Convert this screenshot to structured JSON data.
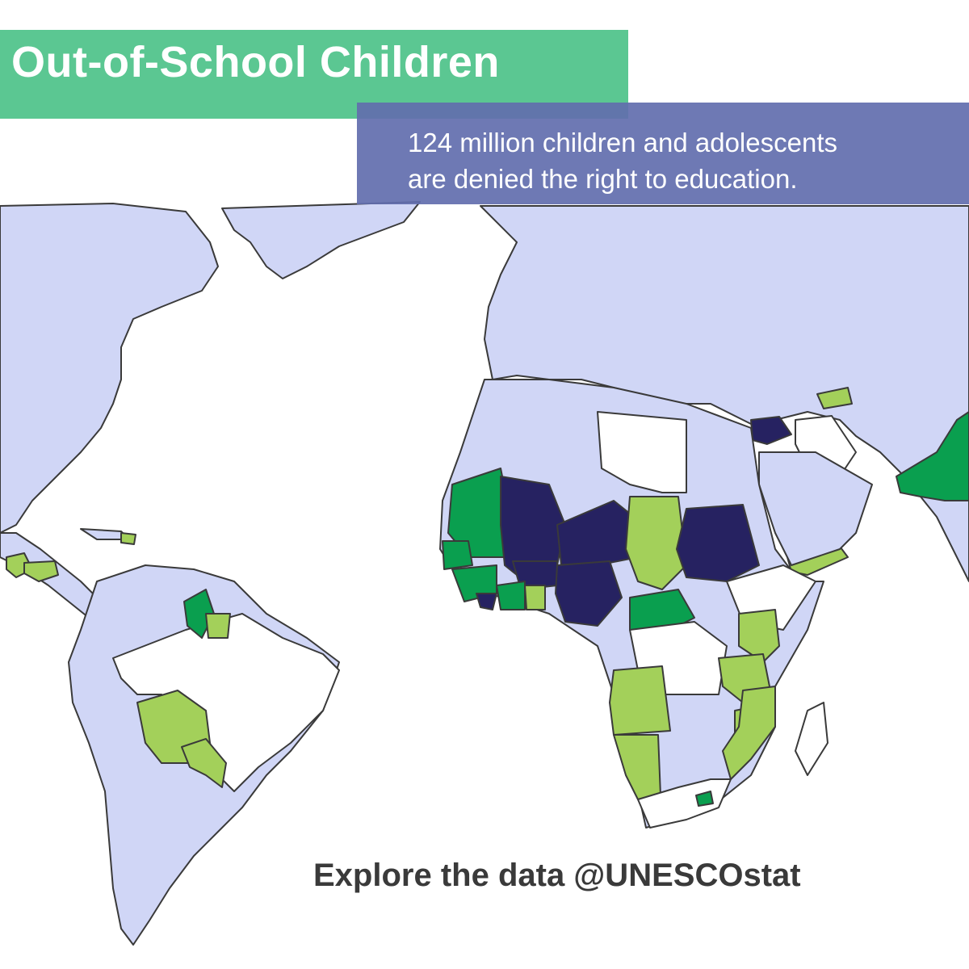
{
  "header": {
    "title": "Out-of-School Children",
    "subtitle_line1": "124 million children and adolescents",
    "subtitle_line2": "are denied the right to education."
  },
  "footer": {
    "cta": "Explore the data @UNESCOstat"
  },
  "colors": {
    "title_band": "#4fc38a",
    "subtitle_band": "#626eae",
    "land_default": "#d0d6f6",
    "no_data": "#ffffff",
    "light_green": "#a3d05a",
    "green": "#0a9f4f",
    "dark_navy": "#262261",
    "border": "#3a3a3a"
  },
  "map": {
    "categories": [
      "default",
      "no-data",
      "light-green",
      "green",
      "dark-navy"
    ],
    "regions": [
      {
        "name": "north-america",
        "category": "default"
      },
      {
        "name": "greenland",
        "category": "default"
      },
      {
        "name": "central-america",
        "category": "default"
      },
      {
        "name": "guatemala",
        "category": "light-green"
      },
      {
        "name": "honduras",
        "category": "light-green"
      },
      {
        "name": "haiti",
        "category": "light-green"
      },
      {
        "name": "south-america",
        "category": "default"
      },
      {
        "name": "brazil",
        "category": "no-data"
      },
      {
        "name": "guyana",
        "category": "green"
      },
      {
        "name": "suriname",
        "category": "light-green"
      },
      {
        "name": "bolivia",
        "category": "light-green"
      },
      {
        "name": "paraguay",
        "category": "light-green"
      },
      {
        "name": "eurasia",
        "category": "default"
      },
      {
        "name": "armenia",
        "category": "light-green"
      },
      {
        "name": "syria",
        "category": "dark-navy"
      },
      {
        "name": "iraq",
        "category": "no-data"
      },
      {
        "name": "libya",
        "category": "no-data"
      },
      {
        "name": "pakistan",
        "category": "green"
      },
      {
        "name": "yemen",
        "category": "light-green"
      },
      {
        "name": "africa",
        "category": "default"
      },
      {
        "name": "mauritania",
        "category": "green"
      },
      {
        "name": "mali",
        "category": "dark-navy"
      },
      {
        "name": "niger",
        "category": "dark-navy"
      },
      {
        "name": "burkina-faso",
        "category": "dark-navy"
      },
      {
        "name": "nigeria",
        "category": "dark-navy"
      },
      {
        "name": "chad",
        "category": "light-green"
      },
      {
        "name": "sudan",
        "category": "dark-navy"
      },
      {
        "name": "central-african-republic",
        "category": "green"
      },
      {
        "name": "senegal",
        "category": "green"
      },
      {
        "name": "guinea",
        "category": "green"
      },
      {
        "name": "liberia",
        "category": "dark-navy"
      },
      {
        "name": "cote-divoire",
        "category": "green"
      },
      {
        "name": "ghana",
        "category": "light-green"
      },
      {
        "name": "central-africa-block",
        "category": "no-data"
      },
      {
        "name": "angola",
        "category": "light-green"
      },
      {
        "name": "namibia",
        "category": "light-green"
      },
      {
        "name": "kenya",
        "category": "light-green"
      },
      {
        "name": "tanzania",
        "category": "light-green"
      },
      {
        "name": "mozambique",
        "category": "light-green"
      },
      {
        "name": "malawi",
        "category": "light-green"
      },
      {
        "name": "south-africa",
        "category": "no-data"
      },
      {
        "name": "lesotho",
        "category": "green"
      },
      {
        "name": "madagascar",
        "category": "no-data"
      },
      {
        "name": "ethiopia",
        "category": "no-data"
      }
    ]
  }
}
